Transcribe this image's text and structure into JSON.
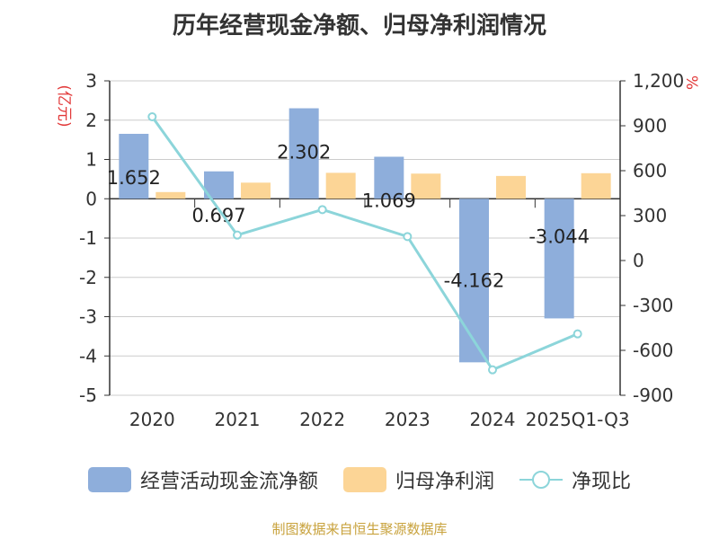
{
  "title": "历年经营现金净额、归母净利润情况",
  "source": "制图数据来自恒生聚源数据库",
  "chart_data": {
    "type": "bar",
    "categories": [
      "2020",
      "2021",
      "2022",
      "2023",
      "2024",
      "2025Q1-Q3"
    ],
    "left_unit": "(亿元)",
    "right_unit": "%",
    "left_ylim": [
      -5,
      3
    ],
    "left_ticks": [
      "3",
      "2",
      "1",
      "0",
      "-1",
      "-2",
      "-3",
      "-4",
      "-5"
    ],
    "right_ylim": [
      -900,
      1200
    ],
    "right_ticks": [
      "1,200",
      "900",
      "600",
      "300",
      "0",
      "-300",
      "-600",
      "-900"
    ],
    "series": [
      {
        "name": "经营活动现金流净额",
        "type": "bar",
        "axis": "left",
        "color": "#8eaedb",
        "values": [
          1.652,
          0.697,
          2.302,
          1.069,
          -4.162,
          -3.044
        ],
        "labels": [
          "1.652",
          "0.697",
          "2.302",
          "1.069",
          "-4.162",
          "-3.044"
        ]
      },
      {
        "name": "归母净利润",
        "type": "bar",
        "axis": "left",
        "color": "#fcd596",
        "values": [
          0.17,
          0.41,
          0.66,
          0.64,
          0.58,
          0.65
        ]
      },
      {
        "name": "净现比",
        "type": "line",
        "axis": "right",
        "color": "#8cd5da",
        "values": [
          960,
          170,
          340,
          160,
          -730,
          -490
        ]
      }
    ],
    "grid": true
  }
}
